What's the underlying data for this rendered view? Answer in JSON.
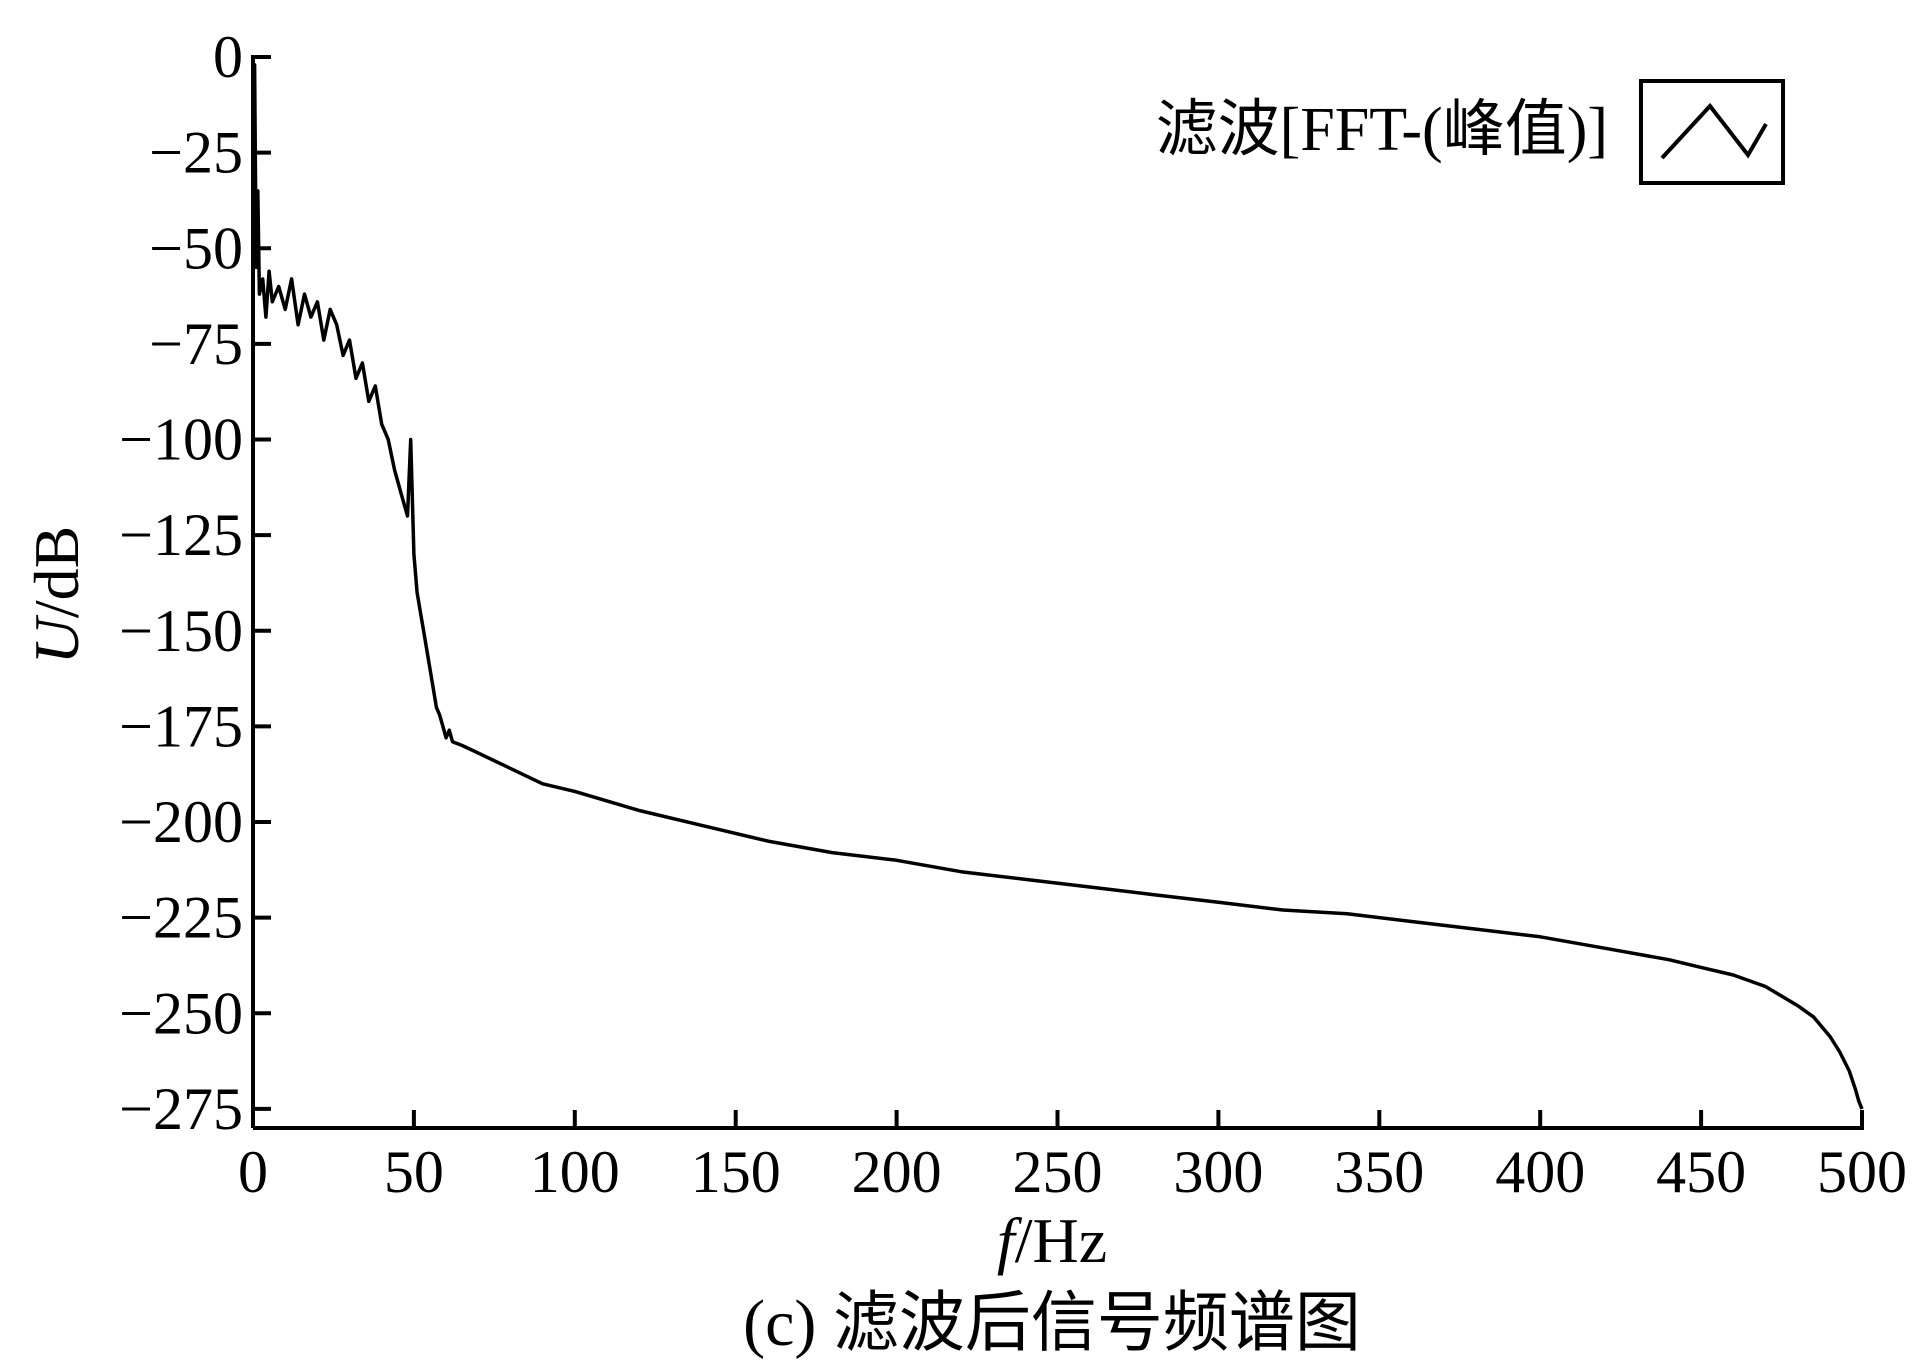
{
  "chart_data": {
    "type": "line",
    "title": "(c) 滤波后信号频谱图",
    "xlabel": "f/Hz",
    "xlabel_var": "f",
    "xlabel_unit": "/Hz",
    "ylabel": "U/dB",
    "ylabel_var": "U",
    "ylabel_unit": "/dB",
    "xlim": [
      0,
      500
    ],
    "ylim": [
      -280,
      0
    ],
    "x_ticks": [
      0,
      50,
      100,
      150,
      200,
      250,
      300,
      350,
      400,
      450,
      500
    ],
    "y_ticks": [
      0,
      -25,
      -50,
      -75,
      -100,
      -125,
      -150,
      -175,
      -200,
      -225,
      -250,
      -275
    ],
    "grid": false,
    "legend": {
      "position": "top-right",
      "entries": [
        "滤波[FFT-(峰值)]"
      ]
    },
    "series": [
      {
        "name": "滤波[FFT-(峰值)]",
        "color": "#000000",
        "x": [
          0,
          0.5,
          1,
          1.5,
          2,
          3,
          4,
          5,
          6,
          8,
          10,
          12,
          14,
          16,
          18,
          20,
          22,
          24,
          26,
          28,
          30,
          32,
          34,
          36,
          38,
          40,
          42,
          44,
          46,
          48,
          49,
          50,
          51,
          52,
          53,
          54,
          55,
          56,
          57,
          58,
          59,
          60,
          61,
          62,
          65,
          70,
          80,
          90,
          100,
          120,
          140,
          160,
          180,
          200,
          220,
          240,
          260,
          280,
          300,
          320,
          340,
          360,
          380,
          400,
          420,
          440,
          450,
          460,
          470,
          480,
          485,
          490,
          493,
          496,
          498,
          499,
          500
        ],
        "y": [
          -65,
          -2,
          -55,
          -35,
          -62,
          -58,
          -68,
          -56,
          -64,
          -60,
          -66,
          -58,
          -70,
          -62,
          -68,
          -64,
          -74,
          -66,
          -70,
          -78,
          -74,
          -84,
          -80,
          -90,
          -86,
          -96,
          -100,
          -108,
          -114,
          -120,
          -100,
          -130,
          -140,
          -145,
          -150,
          -155,
          -160,
          -165,
          -170,
          -172,
          -175,
          -178,
          -176,
          -179,
          -180,
          -182,
          -186,
          -190,
          -192,
          -197,
          -201,
          -205,
          -208,
          -210,
          -213,
          -215,
          -217,
          -219,
          -221,
          -223,
          -224,
          -226,
          -228,
          -230,
          -233,
          -236,
          -238,
          -240,
          -243,
          -248,
          -251,
          -256,
          -260,
          -265,
          -270,
          -273,
          -275
        ]
      }
    ]
  }
}
